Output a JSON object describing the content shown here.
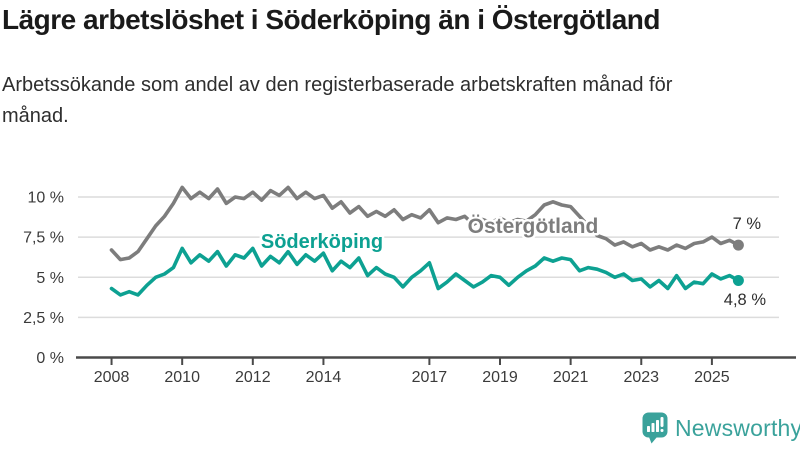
{
  "title": "Lägre arbetslöshet i Söderköping än i Östergötland",
  "subtitle": "Arbetssökande som andel av den registerbaserade arbetskraften månad för månad.",
  "branding": {
    "name": "Newsworthy",
    "icon": "newsworthy-speech-bubble-bar-chart-icon",
    "color": "#3aa29b"
  },
  "chart_data": {
    "type": "line",
    "title": "Lägre arbetslöshet i Söderköping än i Östergötland",
    "subtitle": "Arbetssökande som andel av den registerbaserade arbetskraften månad för månad.",
    "xlabel": "",
    "ylabel": "",
    "unit": "%",
    "grid": "horizontal",
    "legend_position": "inline-labels-on-lines",
    "x_start": 2008.0,
    "x_step": 0.25,
    "x_end": 2025.75,
    "xlim": [
      2007.05,
      2026.9
    ],
    "ylim": [
      0,
      10.9
    ],
    "x_ticks": [
      {
        "v": 2008,
        "label": "2008"
      },
      {
        "v": 2010,
        "label": "2010"
      },
      {
        "v": 2012,
        "label": "2012"
      },
      {
        "v": 2014,
        "label": "2014"
      },
      {
        "v": 2017,
        "label": "2017"
      },
      {
        "v": 2019,
        "label": "2019"
      },
      {
        "v": 2021,
        "label": "2021"
      },
      {
        "v": 2023,
        "label": "2023"
      },
      {
        "v": 2025,
        "label": "2025"
      }
    ],
    "y_ticks": [
      {
        "v": 0,
        "label": "0 %"
      },
      {
        "v": 2.5,
        "label": "2,5 %"
      },
      {
        "v": 5,
        "label": "5 %"
      },
      {
        "v": 7.5,
        "label": "7,5 %"
      },
      {
        "v": 10,
        "label": "10 %"
      }
    ],
    "series": [
      {
        "name": "Östergötland",
        "color": "#7d7d7d",
        "end_value": 7.0,
        "end_label": "7 %",
        "values": [
          6.7,
          6.1,
          6.2,
          6.6,
          7.4,
          8.2,
          8.8,
          9.6,
          10.6,
          9.9,
          10.3,
          9.9,
          10.5,
          9.6,
          10.0,
          9.9,
          10.3,
          9.8,
          10.4,
          10.1,
          10.6,
          9.9,
          10.3,
          9.9,
          10.1,
          9.3,
          9.7,
          9.0,
          9.4,
          8.8,
          9.1,
          8.8,
          9.2,
          8.6,
          8.9,
          8.7,
          9.2,
          8.4,
          8.7,
          8.6,
          8.8,
          8.3,
          8.6,
          8.4,
          8.7,
          8.4,
          8.6,
          8.5,
          8.9,
          9.5,
          9.7,
          9.5,
          9.4,
          8.8,
          8.2,
          7.6,
          7.4,
          7.0,
          7.2,
          6.9,
          7.1,
          6.7,
          6.9,
          6.7,
          7.0,
          6.8,
          7.1,
          7.2,
          7.5,
          7.1,
          7.3,
          7.0
        ]
      },
      {
        "name": "Söderköping",
        "color": "#0da192",
        "end_value": 4.8,
        "end_label": "4,8 %",
        "values": [
          4.3,
          3.9,
          4.1,
          3.9,
          4.5,
          5.0,
          5.2,
          5.6,
          6.8,
          5.9,
          6.4,
          6.0,
          6.6,
          5.7,
          6.4,
          6.2,
          6.8,
          5.7,
          6.3,
          5.9,
          6.6,
          5.8,
          6.4,
          6.0,
          6.5,
          5.4,
          6.0,
          5.6,
          6.2,
          5.1,
          5.6,
          5.2,
          5.0,
          4.4,
          5.0,
          5.4,
          5.9,
          4.3,
          4.7,
          5.2,
          4.8,
          4.4,
          4.7,
          5.1,
          5.0,
          4.5,
          5.0,
          5.4,
          5.7,
          6.2,
          6.0,
          6.2,
          6.1,
          5.4,
          5.6,
          5.5,
          5.3,
          5.0,
          5.2,
          4.8,
          4.9,
          4.4,
          4.8,
          4.3,
          5.1,
          4.3,
          4.7,
          4.6,
          5.2,
          4.9,
          5.1,
          4.8
        ]
      }
    ]
  }
}
